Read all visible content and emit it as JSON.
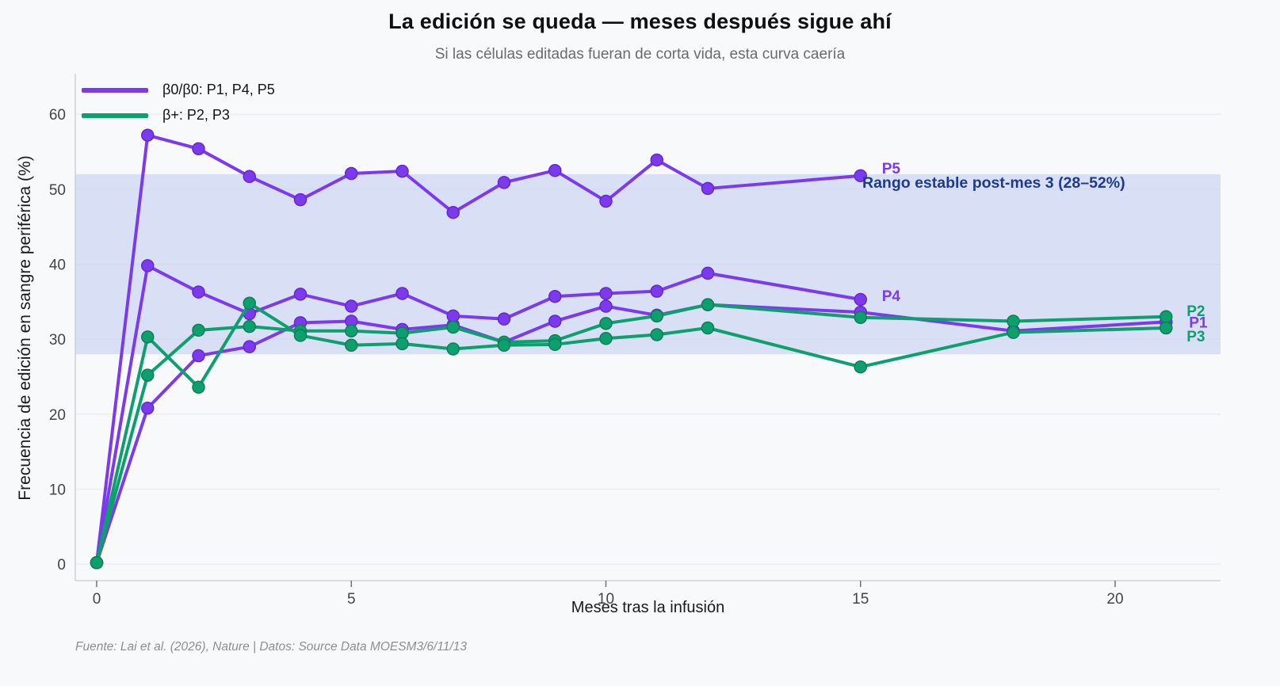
{
  "page": {
    "title": "La edición se queda — meses después sigue ahí",
    "subtitle": "Si las células editadas fueran de corta vida, esta curva caería",
    "footer": "Fuente: Lai et al. (2026), Nature | Datos: Source Data MOESM3/6/11/13"
  },
  "annotation": {
    "text": "Rango estable post-mes 3 (28–52%)",
    "color": "#1e3a8a"
  },
  "legend": {
    "items": [
      {
        "label": "β0/β0: P1, P4, P5",
        "color": "#7c3aed"
      },
      {
        "label": "β+: P2, P3",
        "color": "#0e9f6e"
      }
    ]
  },
  "colors": {
    "background": "#f8f9fa",
    "band_fill": "#b9c6ee",
    "grid": "#eaeaef",
    "spine": "#c9c9ce",
    "tick_label": "#454545"
  },
  "chart_data": {
    "type": "line",
    "title": "La edición se queda — meses después sigue ahí",
    "subtitle": "Si las células editadas fueran de corta vida, esta curva caería",
    "xlabel": "Meses tras la infusión",
    "ylabel": "Frecuencia de edición en sangre periférica (%)",
    "xlim": [
      -0.42,
      22.07
    ],
    "ylim": [
      -2.2,
      65.2
    ],
    "xticks": [
      0,
      5,
      10,
      15,
      20
    ],
    "yticks": [
      0,
      10,
      20,
      30,
      40,
      50,
      60
    ],
    "grid": "horizontal",
    "legend_position": "upper-left",
    "band": {
      "ymin": 28,
      "ymax": 52,
      "label": "Rango estable post-mes 3 (28–52%)"
    },
    "series": [
      {
        "name": "P1",
        "group": "β0/β0",
        "color": "#7c3aed",
        "marker_edge": "#6429c8",
        "x": [
          0,
          1,
          2,
          3,
          4,
          5,
          6,
          7,
          8,
          9,
          10,
          11,
          12,
          15,
          18,
          21
        ],
        "y": [
          0.2,
          20.8,
          27.8,
          29.0,
          32.2,
          32.4,
          31.3,
          31.9,
          29.6,
          32.4,
          34.4,
          33.2,
          34.6,
          33.6,
          31.1,
          32.3
        ],
        "end_label": "P1",
        "label_dx": 29,
        "label_dy": 7
      },
      {
        "name": "P4",
        "group": "β0/β0",
        "color": "#7c3aed",
        "marker_edge": "#6429c8",
        "x": [
          0,
          1,
          2,
          3,
          4,
          5,
          6,
          7,
          8,
          9,
          10,
          11,
          12,
          15
        ],
        "y": [
          0.2,
          39.8,
          36.3,
          33.4,
          36.0,
          34.4,
          36.1,
          33.1,
          32.7,
          35.7,
          36.1,
          36.4,
          38.8,
          35.3
        ],
        "end_label": "P4",
        "label_dx": 27,
        "label_dy": 2
      },
      {
        "name": "P5",
        "group": "β0/β0",
        "color": "#7c3aed",
        "marker_edge": "#6429c8",
        "x": [
          0,
          1,
          2,
          3,
          4,
          5,
          6,
          7,
          8,
          9,
          10,
          11,
          12,
          15
        ],
        "y": [
          0.2,
          57.2,
          55.4,
          51.7,
          48.6,
          52.1,
          52.4,
          46.9,
          50.9,
          52.5,
          48.4,
          53.9,
          50.1,
          51.8
        ],
        "end_label": "P5",
        "label_dx": 27,
        "label_dy": -3
      },
      {
        "name": "P2",
        "group": "β+",
        "color": "#0e9f6e",
        "marker_edge": "#0b7f58",
        "x": [
          0,
          1,
          2,
          3,
          4,
          5,
          6,
          7,
          8,
          9,
          10,
          11,
          12,
          15,
          18,
          21
        ],
        "y": [
          0.2,
          25.2,
          31.2,
          31.7,
          31.1,
          31.1,
          30.8,
          31.6,
          29.6,
          29.8,
          32.1,
          33.1,
          34.6,
          32.9,
          32.4,
          33.0
        ],
        "end_label": "P2",
        "label_dx": 26,
        "label_dy": -1
      },
      {
        "name": "P3",
        "group": "β+",
        "color": "#0e9f6e",
        "marker_edge": "#0b7f58",
        "x": [
          0,
          1,
          2,
          3,
          4,
          5,
          6,
          7,
          8,
          9,
          10,
          11,
          12,
          15,
          18,
          21
        ],
        "y": [
          0.2,
          30.3,
          23.6,
          34.8,
          30.5,
          29.2,
          29.4,
          28.7,
          29.2,
          29.3,
          30.1,
          30.6,
          31.5,
          26.3,
          30.9,
          31.5
        ],
        "end_label": "P3",
        "label_dx": 26,
        "label_dy": 17
      }
    ]
  }
}
